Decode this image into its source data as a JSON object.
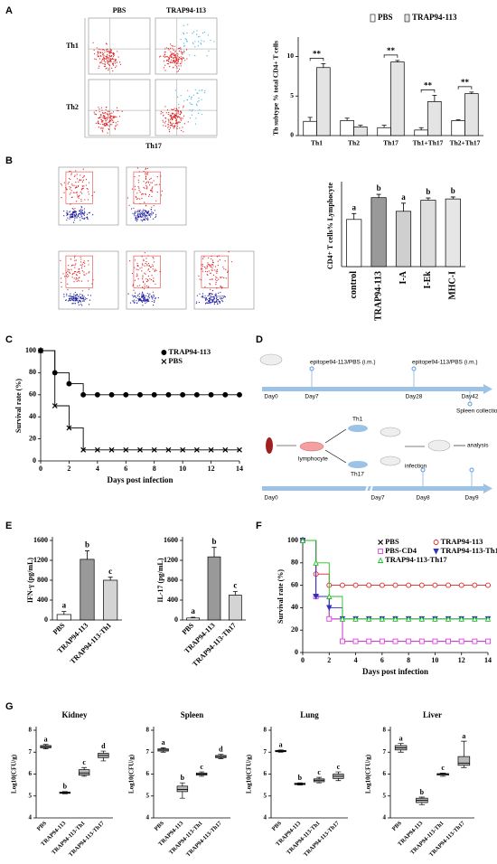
{
  "panel_labels": [
    "A",
    "B",
    "C",
    "D",
    "E",
    "F",
    "G"
  ],
  "flow_a": {
    "columns": [
      "PBS",
      "TRAP94-113"
    ],
    "rows": [
      "Th1",
      "Th2"
    ],
    "x_label": "Th17"
  },
  "diagram_d": {
    "top": {
      "labels": [
        "epitope94-113/PBS (i.m.)",
        "epitope94-113/PBS (i.m.)"
      ],
      "days": [
        "Day0",
        "Day7",
        "Day28",
        "Day42"
      ],
      "collection": "Spleen collection"
    },
    "bottom": {
      "labels": [
        "lymphocyte",
        "Th1",
        "Th17",
        "infection",
        "analysis"
      ],
      "days": [
        "Day0",
        "Day7",
        "Day8",
        "Day9"
      ]
    }
  },
  "chart_data": [
    {
      "type": "bar",
      "ylabel": "Th subtype % total CD4+ T cells",
      "categories": [
        "Th1",
        "Th2",
        "Th17",
        "Th1+Th17",
        "Th2+Th17"
      ],
      "series": [
        {
          "name": "PBS",
          "color": "#ffffff",
          "values": [
            1.8,
            1.9,
            1.0,
            0.7,
            1.9
          ],
          "errors": [
            0.5,
            0.3,
            0.3,
            0.3,
            0.1
          ]
        },
        {
          "name": "TRAP94-113",
          "color": "#e4e4e4",
          "values": [
            8.6,
            1.1,
            9.3,
            4.3,
            5.3
          ],
          "errors": [
            0.5,
            0.2,
            0.2,
            0.8,
            0.2
          ]
        }
      ],
      "annotations": [
        "**",
        null,
        "**",
        "**",
        "**"
      ],
      "ylim": [
        0,
        12
      ],
      "yticks": [
        0,
        5,
        10
      ]
    },
    {
      "type": "bar",
      "ylabel": "CD4+ T cells% Lymphocyte",
      "categories": [
        "control",
        "TRAP94-113",
        "I-A",
        "I-Ek",
        "MHC-I"
      ],
      "values": [
        14.5,
        21.2,
        17.0,
        20.4,
        20.8
      ],
      "errors": [
        1.8,
        1.0,
        2.5,
        0.7,
        0.6
      ],
      "colors": [
        "#ffffff",
        "#999999",
        "#cfcfcf",
        "#dedede",
        "#e6e6e6"
      ],
      "annotations": [
        "a",
        "b",
        "a",
        "b",
        "b"
      ],
      "ylim": [
        0,
        25
      ]
    },
    {
      "type": "line",
      "xlabel": "Days post infection",
      "ylabel": "Survival rate (%)",
      "x": [
        0,
        1,
        2,
        3,
        4,
        5,
        6,
        7,
        8,
        9,
        10,
        11,
        12,
        13,
        14
      ],
      "series": [
        {
          "name": "TRAP94-113",
          "color": "#000000",
          "marker": "circle",
          "values": [
            100,
            80,
            70,
            60,
            60,
            60,
            60,
            60,
            60,
            60,
            60,
            60,
            60,
            60,
            60
          ]
        },
        {
          "name": "PBS",
          "color": "#000000",
          "marker": "x",
          "values": [
            100,
            50,
            30,
            10,
            10,
            10,
            10,
            10,
            10,
            10,
            10,
            10,
            10,
            10,
            10
          ]
        }
      ],
      "xlim": [
        0,
        14
      ],
      "xticks": [
        0,
        2,
        4,
        6,
        8,
        10,
        12,
        14
      ],
      "ylim": [
        0,
        100
      ],
      "yticks": [
        0,
        20,
        40,
        60,
        80,
        100
      ]
    },
    {
      "type": "bar",
      "ylabel": "IFN-γ (pg/mL)",
      "categories": [
        "PBS",
        "TRAP94-113",
        "TRAP94-113-Th1"
      ],
      "values": [
        110,
        1220,
        800
      ],
      "errors": [
        60,
        170,
        60
      ],
      "colors": [
        "#ffffff",
        "#999999",
        "#d4d4d4"
      ],
      "annotations": [
        "a",
        "b",
        "c"
      ],
      "ylim": [
        0,
        1600
      ],
      "yticks": [
        0,
        400,
        800,
        1200,
        1600
      ]
    },
    {
      "type": "bar",
      "ylabel": "IL-17 (pg/mL)",
      "categories": [
        "PBS",
        "TRAP94-113",
        "TRAP94-113-Th17"
      ],
      "values": [
        40,
        1270,
        500
      ],
      "errors": [
        15,
        190,
        70
      ],
      "colors": [
        "#ffffff",
        "#999999",
        "#d4d4d4"
      ],
      "annotations": [
        "a",
        "b",
        "c"
      ],
      "ylim": [
        0,
        1600
      ],
      "yticks": [
        0,
        400,
        800,
        1200,
        1600
      ]
    },
    {
      "type": "line",
      "xlabel": "Days post infection",
      "ylabel": "Survival rate (%)",
      "x": [
        0,
        1,
        2,
        3,
        4,
        5,
        6,
        7,
        8,
        9,
        10,
        11,
        12,
        13,
        14
      ],
      "series": [
        {
          "name": "PBS",
          "color": "#000000",
          "marker": "x",
          "values": [
            100,
            50,
            30,
            10,
            10,
            10,
            10,
            10,
            10,
            10,
            10,
            10,
            10,
            10,
            10
          ]
        },
        {
          "name": "TRAP94-113",
          "color": "#e02020",
          "marker": "circle",
          "values": [
            100,
            70,
            60,
            60,
            60,
            60,
            60,
            60,
            60,
            60,
            60,
            60,
            60,
            60,
            60
          ]
        },
        {
          "name": "PBS-CD4",
          "color": "#e040e0",
          "marker": "square",
          "values": [
            100,
            50,
            30,
            10,
            10,
            10,
            10,
            10,
            10,
            10,
            10,
            10,
            10,
            10,
            10
          ]
        },
        {
          "name": "TRAP94-113-Th1",
          "color": "#3030c0",
          "marker": "tridown",
          "values": [
            100,
            50,
            40,
            30,
            30,
            30,
            30,
            30,
            30,
            30,
            30,
            30,
            30,
            30,
            30
          ]
        },
        {
          "name": "TRAP94-113-Th17",
          "color": "#20c020",
          "marker": "triup",
          "values": [
            100,
            80,
            50,
            30,
            30,
            30,
            30,
            30,
            30,
            30,
            30,
            30,
            30,
            30,
            30
          ]
        }
      ],
      "xlim": [
        0,
        14
      ],
      "xticks": [
        0,
        2,
        4,
        6,
        8,
        10,
        12,
        14
      ],
      "ylim": [
        0,
        100
      ],
      "yticks": [
        0,
        20,
        40,
        60,
        80,
        100
      ]
    },
    {
      "type": "box",
      "title": "Kidney",
      "ylabel": "Log10(CFU/g)",
      "categories": [
        "PBS",
        "TRAP94-113",
        "TRAP94-113-Th1",
        "TRAP94-113-Th17"
      ],
      "boxes": [
        [
          7.15,
          7.2,
          7.25,
          7.3,
          7.35
        ],
        [
          5.1,
          5.12,
          5.15,
          5.18,
          5.2
        ],
        [
          5.9,
          5.95,
          6.05,
          6.2,
          6.3
        ],
        [
          6.6,
          6.75,
          6.85,
          6.95,
          7.05
        ]
      ],
      "annotations": [
        "a",
        "b",
        "c",
        "d"
      ],
      "ylim": [
        4,
        8
      ],
      "yticks": [
        4,
        5,
        6,
        7,
        8
      ]
    },
    {
      "type": "box",
      "title": "Spleen",
      "ylabel": "Log10(CFU/g)",
      "categories": [
        "PBS",
        "TRAP94-113",
        "TRAP94-113-Th1",
        "TRAP94-113-Th17"
      ],
      "boxes": [
        [
          7.0,
          7.05,
          7.1,
          7.15,
          7.2
        ],
        [
          4.9,
          5.2,
          5.3,
          5.45,
          5.6
        ],
        [
          5.9,
          5.95,
          6.0,
          6.05,
          6.1
        ],
        [
          6.7,
          6.75,
          6.8,
          6.85,
          6.9
        ]
      ],
      "annotations": [
        "a",
        "b",
        "c",
        "d"
      ],
      "ylim": [
        4,
        8
      ],
      "yticks": [
        4,
        5,
        6,
        7,
        8
      ]
    },
    {
      "type": "box",
      "title": "Lung",
      "ylabel": "Log10(CFU/g)",
      "categories": [
        "PBS",
        "TRAP94-113",
        "TRAP94-113-Th1",
        "TRAP94-113-Th17"
      ],
      "boxes": [
        [
          7.0,
          7.02,
          7.05,
          7.08,
          7.1
        ],
        [
          5.5,
          5.52,
          5.55,
          5.58,
          5.6
        ],
        [
          5.6,
          5.65,
          5.72,
          5.78,
          5.85
        ],
        [
          5.7,
          5.8,
          5.9,
          6.0,
          6.1
        ]
      ],
      "annotations": [
        "a",
        "b",
        "c",
        "c"
      ],
      "ylim": [
        4,
        8
      ],
      "yticks": [
        4,
        5,
        6,
        7,
        8
      ]
    },
    {
      "type": "box",
      "title": "Liver",
      "ylabel": "Log10(CFU/g)",
      "categories": [
        "PBS",
        "TRAP94-113",
        "TRAP94-113-Th1",
        "TRAP94-113-Th17"
      ],
      "boxes": [
        [
          7.0,
          7.1,
          7.2,
          7.3,
          7.4
        ],
        [
          4.6,
          4.7,
          4.8,
          4.9,
          4.95
        ],
        [
          5.9,
          5.95,
          6.0,
          6.02,
          6.05
        ],
        [
          6.3,
          6.4,
          6.5,
          6.8,
          7.5
        ]
      ],
      "annotations": [
        "a",
        "b",
        "c",
        "a"
      ],
      "ylim": [
        4,
        8
      ],
      "yticks": [
        4,
        5,
        6,
        7,
        8
      ]
    }
  ]
}
